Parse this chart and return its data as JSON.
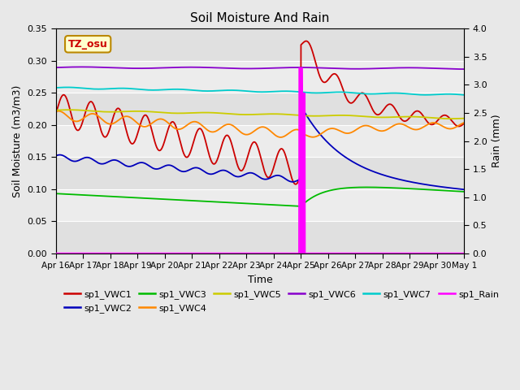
{
  "title": "Soil Moisture And Rain",
  "xlabel": "Time",
  "ylabel_left": "Soil Moisture (m3/m3)",
  "ylabel_right": "Rain (mm)",
  "station_label": "TZ_osu",
  "date_labels": [
    "Apr 16",
    "Apr 17",
    "Apr 18",
    "Apr 19",
    "Apr 20",
    "Apr 21",
    "Apr 22",
    "Apr 23",
    "Apr 24",
    "Apr 25",
    "Apr 26",
    "Apr 27",
    "Apr 28",
    "Apr 29",
    "Apr 30",
    "May 1"
  ],
  "band_colors": [
    "#e0e0e0",
    "#ececec"
  ],
  "band_edges": [
    0.0,
    0.05,
    0.1,
    0.15,
    0.2,
    0.25,
    0.3,
    0.35
  ],
  "vwc1_color": "#cc0000",
  "vwc2_color": "#0000bb",
  "vwc3_color": "#00bb00",
  "vwc4_color": "#ff8800",
  "vwc5_color": "#cccc00",
  "vwc6_color": "#8800cc",
  "vwc7_color": "#00cccc",
  "rain_color": "#ff00ff",
  "bg_color": "#f0f0f0",
  "fig_bg": "#e8e8e8"
}
